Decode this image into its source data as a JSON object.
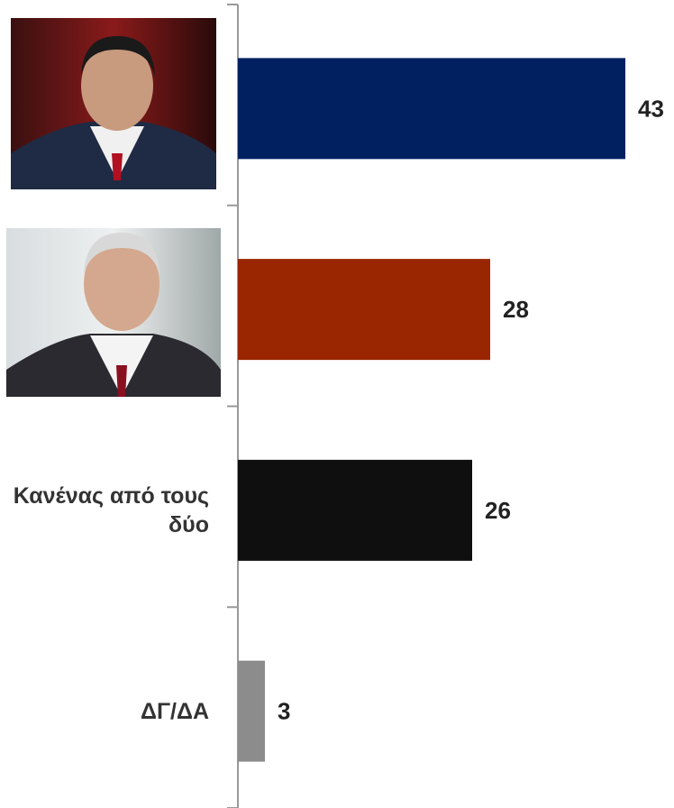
{
  "chart_data": {
    "type": "bar",
    "orientation": "horizontal",
    "categories": [
      null,
      null,
      "Κανένας από τους δύο",
      "ΔΓ/ΔΑ"
    ],
    "values": [
      43,
      28,
      26,
      3
    ],
    "colors": [
      "#002060",
      "#992600",
      "#0f0f0f",
      "#8c8c8c"
    ]
  }
}
